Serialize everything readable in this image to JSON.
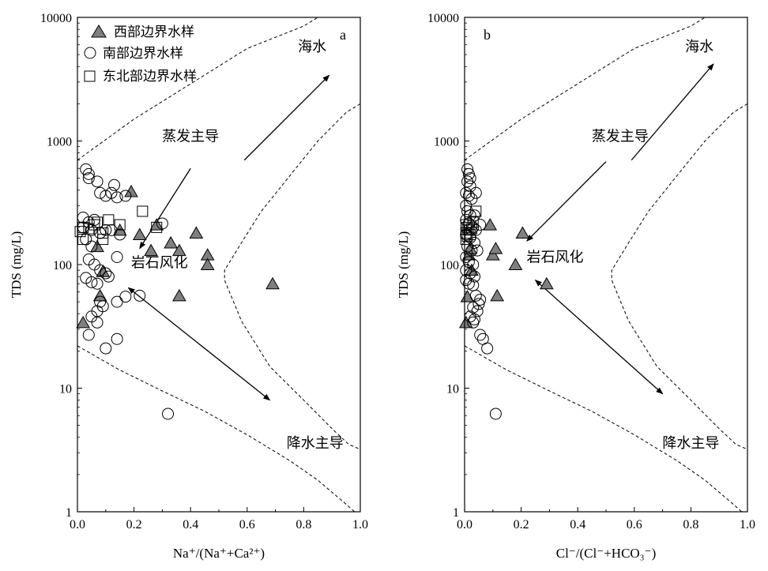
{
  "chart_data": [
    {
      "type": "scatter",
      "panel_label": "a",
      "xlabel": "Na⁺/(Na⁺+Ca²⁺)",
      "ylabel": "TDS (mg/L)",
      "xlim": [
        0,
        1.0
      ],
      "ylim": [
        1,
        10000
      ],
      "yscale": "log",
      "x_ticks": [
        "0.0",
        "0.2",
        "0.4",
        "0.6",
        "0.8",
        "1.0"
      ],
      "y_ticks": [
        "1",
        "10",
        "100",
        "1000",
        "10000"
      ],
      "legend": {
        "position": "top-left",
        "entries": [
          {
            "label": "西部边界水样",
            "marker": "triangle"
          },
          {
            "label": "南部边界水样",
            "marker": "circle"
          },
          {
            "label": "东北部边界水样",
            "marker": "square"
          }
        ]
      },
      "annotations": [
        {
          "text": "海水",
          "x": 0.83,
          "y": 5300
        },
        {
          "text": "蒸发主导",
          "x": 0.4,
          "y": 1000
        },
        {
          "text": "岩石风化",
          "x": 0.29,
          "y": 95
        },
        {
          "text": "降水主导",
          "x": 0.84,
          "y": 3.3
        }
      ],
      "arrows": [
        {
          "from": [
            0.59,
            700
          ],
          "to": [
            0.89,
            3400
          ],
          "heads": "end"
        },
        {
          "from": [
            0.4,
            600
          ],
          "to": [
            0.22,
            135
          ],
          "heads": "end"
        },
        {
          "from": [
            0.18,
            65
          ],
          "to": [
            0.68,
            8.0
          ],
          "heads": "both"
        }
      ],
      "boundaries": [
        {
          "name": "upper",
          "points": [
            [
              0.0,
              700
            ],
            [
              0.2,
              1500
            ],
            [
              0.4,
              2900
            ],
            [
              0.6,
              5600
            ],
            [
              0.8,
              8500
            ],
            [
              0.85,
              10000
            ]
          ]
        },
        {
          "name": "lower",
          "points": [
            [
              0.0,
              22
            ],
            [
              0.15,
              14
            ],
            [
              0.3,
              9.5
            ],
            [
              0.45,
              6.5
            ],
            [
              0.6,
              4.2
            ],
            [
              0.75,
              2.6
            ],
            [
              0.85,
              1.8
            ],
            [
              0.95,
              1.15
            ],
            [
              0.98,
              1.0
            ]
          ]
        },
        {
          "name": "right",
          "points": [
            [
              1.0,
              2000
            ],
            [
              0.95,
              1700
            ],
            [
              0.85,
              1000
            ],
            [
              0.75,
              520
            ],
            [
              0.65,
              270
            ],
            [
              0.58,
              150
            ],
            [
              0.52,
              90
            ],
            [
              0.52,
              75
            ],
            [
              0.58,
              35
            ],
            [
              0.68,
              15
            ],
            [
              0.8,
              8
            ],
            [
              0.9,
              4.7
            ],
            [
              0.96,
              3.5
            ],
            [
              1.0,
              3.2
            ]
          ]
        }
      ],
      "series": [
        {
          "name": "西部边界水样",
          "marker": "triangle",
          "points": [
            [
              0.02,
              34
            ],
            [
              0.07,
              140
            ],
            [
              0.08,
              56
            ],
            [
              0.09,
              88
            ],
            [
              0.15,
              190
            ],
            [
              0.19,
              390
            ],
            [
              0.22,
              175
            ],
            [
              0.26,
              130
            ],
            [
              0.28,
              210
            ],
            [
              0.33,
              150
            ],
            [
              0.36,
              130
            ],
            [
              0.36,
              56
            ],
            [
              0.42,
              180
            ],
            [
              0.46,
              120
            ],
            [
              0.46,
              100
            ],
            [
              0.69,
              70
            ]
          ]
        },
        {
          "name": "南部边界水样",
          "marker": "circle",
          "points": [
            [
              0.03,
              590
            ],
            [
              0.04,
              540
            ],
            [
              0.04,
              500
            ],
            [
              0.07,
              470
            ],
            [
              0.08,
              380
            ],
            [
              0.1,
              360
            ],
            [
              0.12,
              380
            ],
            [
              0.13,
              440
            ],
            [
              0.14,
              350
            ],
            [
              0.17,
              360
            ],
            [
              0.02,
              240
            ],
            [
              0.04,
              220
            ],
            [
              0.06,
              230
            ],
            [
              0.02,
              200
            ],
            [
              0.05,
              190
            ],
            [
              0.08,
              180
            ],
            [
              0.1,
              190
            ],
            [
              0.12,
              190
            ],
            [
              0.15,
              175
            ],
            [
              0.3,
              215
            ],
            [
              0.03,
              160
            ],
            [
              0.05,
              140
            ],
            [
              0.04,
              110
            ],
            [
              0.06,
              100
            ],
            [
              0.08,
              90
            ],
            [
              0.1,
              85
            ],
            [
              0.11,
              80
            ],
            [
              0.14,
              115
            ],
            [
              0.03,
              78
            ],
            [
              0.05,
              72
            ],
            [
              0.07,
              70
            ],
            [
              0.08,
              50
            ],
            [
              0.09,
              46
            ],
            [
              0.07,
              42
            ],
            [
              0.05,
              38
            ],
            [
              0.07,
              34
            ],
            [
              0.04,
              27
            ],
            [
              0.1,
              21
            ],
            [
              0.14,
              25
            ],
            [
              0.14,
              50
            ],
            [
              0.17,
              55
            ],
            [
              0.22,
              56
            ],
            [
              0.32,
              6.2
            ]
          ]
        },
        {
          "name": "东北部边界水样",
          "marker": "square",
          "points": [
            [
              0.01,
              185
            ],
            [
              0.02,
              200
            ],
            [
              0.04,
              195
            ],
            [
              0.06,
              210
            ],
            [
              0.07,
              220
            ],
            [
              0.09,
              180
            ],
            [
              0.11,
              230
            ],
            [
              0.15,
              210
            ],
            [
              0.23,
              270
            ],
            [
              0.28,
              200
            ],
            [
              0.02,
              160
            ],
            [
              0.09,
              160
            ]
          ]
        }
      ]
    },
    {
      "type": "scatter",
      "panel_label": "b",
      "xlabel": "Cl⁻/(Cl⁻+HCO₃⁻)",
      "ylabel": "TDS (mg/L)",
      "xlim": [
        0,
        1.0
      ],
      "ylim": [
        1,
        10000
      ],
      "yscale": "log",
      "x_ticks": [
        "0.0",
        "0.2",
        "0.4",
        "0.6",
        "0.8",
        "1.0"
      ],
      "y_ticks": [
        "1",
        "10",
        "100",
        "1000",
        "10000"
      ],
      "annotations": [
        {
          "text": "海水",
          "x": 0.83,
          "y": 5300
        },
        {
          "text": "蒸发主导",
          "x": 0.55,
          "y": 1000
        },
        {
          "text": "岩石风化",
          "x": 0.32,
          "y": 105
        },
        {
          "text": "降水主导",
          "x": 0.8,
          "y": 3.3
        }
      ],
      "arrows": [
        {
          "from": [
            0.59,
            700
          ],
          "to": [
            0.88,
            4200
          ],
          "heads": "end"
        },
        {
          "from": [
            0.5,
            680
          ],
          "to": [
            0.22,
            155
          ],
          "heads": "end"
        },
        {
          "from": [
            0.25,
            75
          ],
          "to": [
            0.7,
            9.0
          ],
          "heads": "both"
        }
      ],
      "boundaries": [
        {
          "name": "upper",
          "points": [
            [
              0.0,
              700
            ],
            [
              0.2,
              1500
            ],
            [
              0.4,
              2900
            ],
            [
              0.6,
              5600
            ],
            [
              0.8,
              8500
            ],
            [
              0.85,
              10000
            ]
          ]
        },
        {
          "name": "lower",
          "points": [
            [
              0.0,
              22
            ],
            [
              0.15,
              14
            ],
            [
              0.3,
              9.5
            ],
            [
              0.45,
              6.5
            ],
            [
              0.6,
              4.2
            ],
            [
              0.75,
              2.6
            ],
            [
              0.85,
              1.8
            ],
            [
              0.95,
              1.15
            ],
            [
              0.98,
              1.0
            ]
          ]
        },
        {
          "name": "right",
          "points": [
            [
              1.0,
              2000
            ],
            [
              0.95,
              1700
            ],
            [
              0.85,
              1000
            ],
            [
              0.75,
              520
            ],
            [
              0.65,
              270
            ],
            [
              0.58,
              150
            ],
            [
              0.52,
              90
            ],
            [
              0.52,
              75
            ],
            [
              0.58,
              35
            ],
            [
              0.68,
              15
            ],
            [
              0.8,
              8
            ],
            [
              0.9,
              4.7
            ],
            [
              0.96,
              3.5
            ],
            [
              1.0,
              3.2
            ]
          ]
        }
      ],
      "series": [
        {
          "name": "西部边界水样",
          "marker": "triangle",
          "points": [
            [
              0.005,
              34
            ],
            [
              0.01,
              55
            ],
            [
              0.015,
              120
            ],
            [
              0.02,
              135
            ],
            [
              0.025,
              90
            ],
            [
              0.09,
              210
            ],
            [
              0.1,
              120
            ],
            [
              0.11,
              135
            ],
            [
              0.115,
              56
            ],
            [
              0.18,
              100
            ],
            [
              0.205,
              180
            ],
            [
              0.29,
              70
            ]
          ]
        },
        {
          "name": "南部边界水样",
          "marker": "circle",
          "points": [
            [
              0.01,
              590
            ],
            [
              0.015,
              540
            ],
            [
              0.02,
              500
            ],
            [
              0.01,
              470
            ],
            [
              0.02,
              430
            ],
            [
              0.005,
              380
            ],
            [
              0.015,
              360
            ],
            [
              0.025,
              340
            ],
            [
              0.04,
              380
            ],
            [
              0.005,
              300
            ],
            [
              0.01,
              270
            ],
            [
              0.02,
              250
            ],
            [
              0.035,
              250
            ],
            [
              0.005,
              230
            ],
            [
              0.015,
              215
            ],
            [
              0.03,
              200
            ],
            [
              0.04,
              190
            ],
            [
              0.055,
              210
            ],
            [
              0.005,
              175
            ],
            [
              0.02,
              165
            ],
            [
              0.035,
              150
            ],
            [
              0.01,
              140
            ],
            [
              0.025,
              130
            ],
            [
              0.045,
              130
            ],
            [
              0.005,
              115
            ],
            [
              0.015,
              105
            ],
            [
              0.03,
              100
            ],
            [
              0.005,
              90
            ],
            [
              0.02,
              85
            ],
            [
              0.035,
              80
            ],
            [
              0.005,
              75
            ],
            [
              0.015,
              70
            ],
            [
              0.03,
              68
            ],
            [
              0.04,
              56
            ],
            [
              0.055,
              52
            ],
            [
              0.05,
              48
            ],
            [
              0.03,
              45
            ],
            [
              0.045,
              42
            ],
            [
              0.02,
              38
            ],
            [
              0.035,
              36
            ],
            [
              0.03,
              34
            ],
            [
              0.055,
              27
            ],
            [
              0.065,
              25
            ],
            [
              0.08,
              21
            ],
            [
              0.11,
              6.2
            ]
          ]
        },
        {
          "name": "东北部边界水样",
          "marker": "square",
          "points": [
            [
              0.005,
              210
            ],
            [
              0.01,
              200
            ],
            [
              0.015,
              190
            ],
            [
              0.005,
              180
            ],
            [
              0.02,
              175
            ],
            [
              0.01,
              170
            ],
            [
              0.025,
              195
            ],
            [
              0.03,
              220
            ],
            [
              0.04,
              270
            ],
            [
              0.005,
              160
            ]
          ]
        }
      ]
    }
  ]
}
